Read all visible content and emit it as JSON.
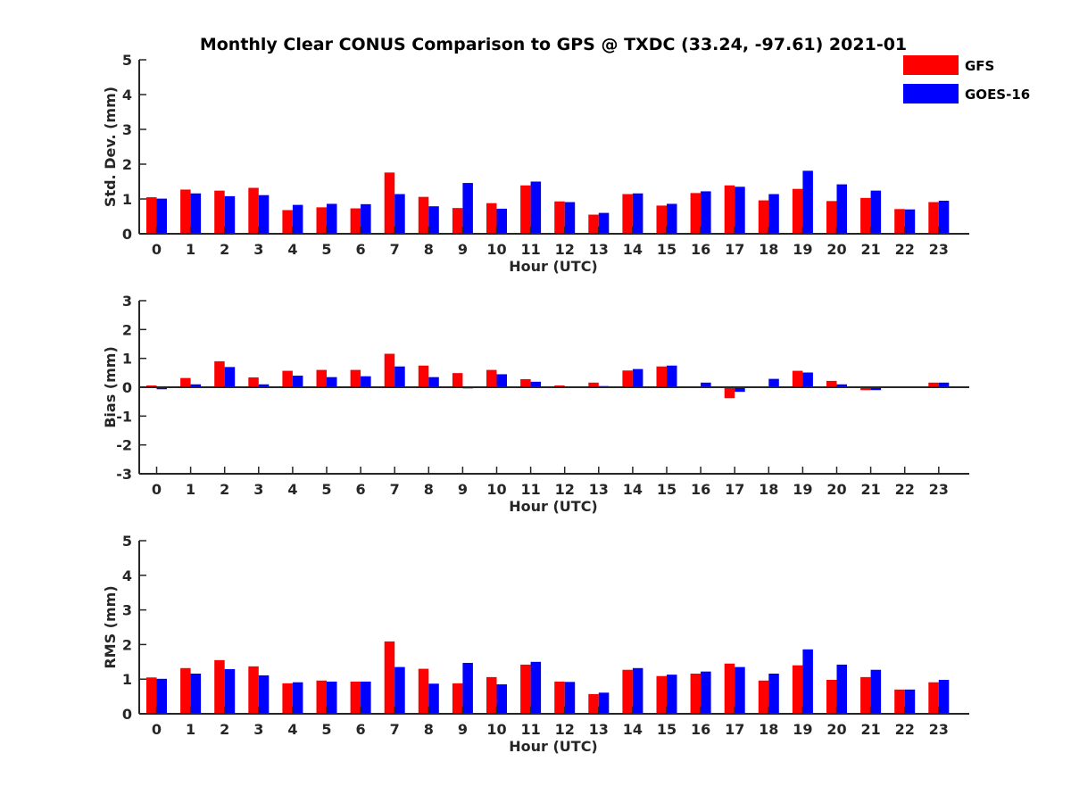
{
  "title": "Monthly Clear CONUS Comparison to GPS @ TXDC (33.24, -97.61) 2021-01",
  "legend": {
    "location": "top-right",
    "entries": [
      {
        "name": "GFS",
        "color": "#ff0000"
      },
      {
        "name": "GOES-16",
        "color": "#0000ff"
      }
    ]
  },
  "chart_data": [
    {
      "type": "bar",
      "xlabel": "Hour (UTC)",
      "ylabel": "Std. Dev. (mm)",
      "ylim": [
        0,
        5
      ],
      "yticks": [
        0,
        1,
        2,
        3,
        4,
        5
      ],
      "categories": [
        "0",
        "1",
        "2",
        "3",
        "4",
        "5",
        "6",
        "7",
        "8",
        "9",
        "10",
        "11",
        "12",
        "13",
        "14",
        "15",
        "16",
        "17",
        "18",
        "19",
        "20",
        "21",
        "22",
        "23"
      ],
      "series": [
        {
          "name": "GFS",
          "color": "#ff0000",
          "values": [
            1.05,
            1.27,
            1.24,
            1.32,
            0.68,
            0.76,
            0.73,
            1.76,
            1.06,
            0.74,
            0.88,
            1.39,
            0.93,
            0.55,
            1.14,
            0.81,
            1.17,
            1.39,
            0.96,
            1.29,
            0.94,
            1.03,
            0.71,
            0.91
          ]
        },
        {
          "name": "GOES-16",
          "color": "#0000ff",
          "values": [
            1.01,
            1.16,
            1.08,
            1.11,
            0.83,
            0.86,
            0.85,
            1.14,
            0.79,
            1.46,
            0.72,
            1.5,
            0.91,
            0.6,
            1.16,
            0.86,
            1.22,
            1.35,
            1.14,
            1.81,
            1.42,
            1.24,
            0.7,
            0.95
          ]
        }
      ]
    },
    {
      "type": "bar",
      "xlabel": "Hour (UTC)",
      "ylabel": "Bias (mm)",
      "ylim": [
        -3,
        3
      ],
      "yticks": [
        -3,
        -2,
        -1,
        0,
        1,
        2,
        3
      ],
      "categories": [
        "0",
        "1",
        "2",
        "3",
        "4",
        "5",
        "6",
        "7",
        "8",
        "9",
        "10",
        "11",
        "12",
        "13",
        "14",
        "15",
        "16",
        "17",
        "18",
        "19",
        "20",
        "21",
        "22",
        "23"
      ],
      "series": [
        {
          "name": "GFS",
          "color": "#ff0000",
          "values": [
            0.06,
            0.32,
            0.9,
            0.34,
            0.57,
            0.6,
            0.6,
            1.16,
            0.75,
            0.49,
            0.6,
            0.28,
            0.06,
            0.16,
            0.58,
            0.72,
            0.0,
            -0.38,
            0.0,
            0.57,
            0.22,
            -0.1,
            -0.03,
            0.16
          ]
        },
        {
          "name": "GOES-16",
          "color": "#0000ff",
          "values": [
            -0.07,
            0.1,
            0.7,
            0.1,
            0.4,
            0.35,
            0.38,
            0.72,
            0.35,
            -0.04,
            0.45,
            0.19,
            0.0,
            0.04,
            0.63,
            0.75,
            0.16,
            -0.16,
            0.29,
            0.51,
            0.1,
            -0.1,
            0.0,
            0.16
          ]
        }
      ]
    },
    {
      "type": "bar",
      "xlabel": "Hour (UTC)",
      "ylabel": "RMS (mm)",
      "ylim": [
        0,
        5
      ],
      "yticks": [
        0,
        1,
        2,
        3,
        4,
        5
      ],
      "categories": [
        "0",
        "1",
        "2",
        "3",
        "4",
        "5",
        "6",
        "7",
        "8",
        "9",
        "10",
        "11",
        "12",
        "13",
        "14",
        "15",
        "16",
        "17",
        "18",
        "19",
        "20",
        "21",
        "22",
        "23"
      ],
      "series": [
        {
          "name": "GFS",
          "color": "#ff0000",
          "values": [
            1.05,
            1.32,
            1.55,
            1.37,
            0.88,
            0.96,
            0.93,
            2.09,
            1.3,
            0.88,
            1.06,
            1.42,
            0.93,
            0.57,
            1.27,
            1.09,
            1.16,
            1.45,
            0.96,
            1.4,
            0.98,
            1.06,
            0.7,
            0.91
          ]
        },
        {
          "name": "GOES-16",
          "color": "#0000ff",
          "values": [
            1.01,
            1.16,
            1.29,
            1.11,
            0.91,
            0.93,
            0.93,
            1.35,
            0.87,
            1.47,
            0.85,
            1.5,
            0.92,
            0.61,
            1.32,
            1.13,
            1.22,
            1.35,
            1.16,
            1.86,
            1.42,
            1.27,
            0.7,
            0.98
          ]
        }
      ]
    }
  ]
}
